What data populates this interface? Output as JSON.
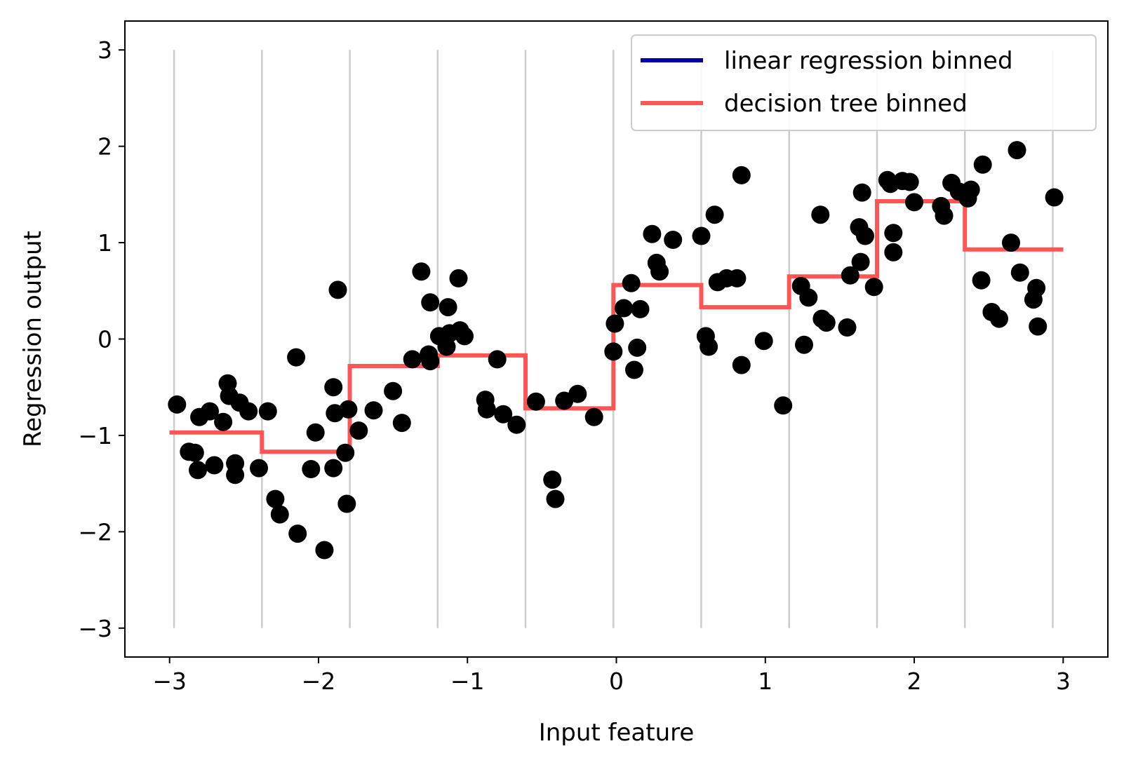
{
  "chart_data": {
    "type": "line",
    "xlabel": "Input feature",
    "ylabel": "Regression output",
    "xlim": [
      -3.3,
      3.3
    ],
    "ylim": [
      -3.3,
      3.3
    ],
    "xticks": [
      -3,
      -2,
      -1,
      0,
      1,
      2,
      3
    ],
    "yticks": [
      -3,
      -2,
      -1,
      0,
      1,
      2,
      3
    ],
    "xtick_labels": [
      "−3",
      "−2",
      "−1",
      "0",
      "1",
      "2",
      "3"
    ],
    "ytick_labels": [
      "−3",
      "−2",
      "−1",
      "0",
      "1",
      "2",
      "3"
    ],
    "bin_edges": [
      -2.97,
      -2.38,
      -1.79,
      -1.2,
      -0.61,
      -0.02,
      0.57,
      1.16,
      1.75,
      2.34,
      2.93
    ],
    "bin_line_color": "#cccccc",
    "legend_position": "upper right",
    "series": [
      {
        "name": "linear regression binned",
        "color": "#0000aa",
        "x": [
          -3,
          -2.38,
          -2.38,
          -1.79,
          -1.79,
          -1.2,
          -1.2,
          -0.61,
          -0.61,
          -0.02,
          -0.02,
          0.57,
          0.57,
          1.16,
          1.16,
          1.75,
          1.75,
          2.34,
          2.34,
          3
        ],
        "y": [
          -0.97,
          -0.97,
          -1.17,
          -1.17,
          -0.28,
          -0.28,
          -0.17,
          -0.17,
          -0.72,
          -0.72,
          0.56,
          0.56,
          0.33,
          0.33,
          0.65,
          0.65,
          1.43,
          1.43,
          0.93,
          0.93
        ]
      },
      {
        "name": "decision tree binned",
        "color": "#ff5555",
        "x": [
          -3,
          -2.38,
          -2.38,
          -1.79,
          -1.79,
          -1.2,
          -1.2,
          -0.61,
          -0.61,
          -0.02,
          -0.02,
          0.57,
          0.57,
          1.16,
          1.16,
          1.75,
          1.75,
          2.34,
          2.34,
          3
        ],
        "y": [
          -0.97,
          -0.97,
          -1.17,
          -1.17,
          -0.28,
          -0.28,
          -0.17,
          -0.17,
          -0.72,
          -0.72,
          0.56,
          0.56,
          0.33,
          0.33,
          0.65,
          0.65,
          1.43,
          1.43,
          0.93,
          0.93
        ]
      }
    ],
    "scatter": {
      "color": "#000000",
      "points": [
        [
          -2.95,
          -0.68
        ],
        [
          -2.87,
          -1.17
        ],
        [
          -2.83,
          -1.18
        ],
        [
          -2.81,
          -1.36
        ],
        [
          -2.8,
          -0.81
        ],
        [
          -2.73,
          -0.75
        ],
        [
          -2.7,
          -1.31
        ],
        [
          -2.64,
          -0.86
        ],
        [
          -2.61,
          -0.46
        ],
        [
          -2.6,
          -0.59
        ],
        [
          -2.56,
          -1.29
        ],
        [
          -2.56,
          -1.41
        ],
        [
          -2.53,
          -0.66
        ],
        [
          -2.47,
          -0.75
        ],
        [
          -2.4,
          -1.34
        ],
        [
          -2.34,
          -0.75
        ],
        [
          -2.29,
          -1.66
        ],
        [
          -2.26,
          -1.82
        ],
        [
          -2.15,
          -0.19
        ],
        [
          -2.14,
          -2.02
        ],
        [
          -2.05,
          -1.35
        ],
        [
          -2.02,
          -0.97
        ],
        [
          -1.96,
          -2.19
        ],
        [
          -1.9,
          -0.5
        ],
        [
          -1.9,
          -1.34
        ],
        [
          -1.89,
          -0.77
        ],
        [
          -1.87,
          0.51
        ],
        [
          -1.82,
          -1.18
        ],
        [
          -1.81,
          -1.71
        ],
        [
          -1.8,
          -0.73
        ],
        [
          -1.73,
          -0.95
        ],
        [
          -1.63,
          -0.74
        ],
        [
          -1.5,
          -0.54
        ],
        [
          -1.44,
          -0.87
        ],
        [
          -1.37,
          -0.21
        ],
        [
          -1.31,
          0.7
        ],
        [
          -1.26,
          -0.16
        ],
        [
          -1.25,
          -0.23
        ],
        [
          -1.25,
          0.38
        ],
        [
          -1.19,
          0.03
        ],
        [
          -1.14,
          -0.08
        ],
        [
          -1.13,
          0.33
        ],
        [
          -1.12,
          0.06
        ],
        [
          -1.06,
          0.63
        ],
        [
          -1.05,
          0.09
        ],
        [
          -1.02,
          0.03
        ],
        [
          -0.88,
          -0.63
        ],
        [
          -0.87,
          -0.73
        ],
        [
          -0.8,
          -0.21
        ],
        [
          -0.76,
          -0.78
        ],
        [
          -0.67,
          -0.89
        ],
        [
          -0.54,
          -0.65
        ],
        [
          -0.43,
          -1.46
        ],
        [
          -0.41,
          -1.66
        ],
        [
          -0.35,
          -0.64
        ],
        [
          -0.26,
          -0.57
        ],
        [
          -0.15,
          -0.81
        ],
        [
          -0.01,
          0.16
        ],
        [
          -0.02,
          -0.13
        ],
        [
          0.05,
          0.32
        ],
        [
          0.1,
          0.58
        ],
        [
          0.12,
          -0.32
        ],
        [
          0.14,
          -0.09
        ],
        [
          0.16,
          0.31
        ],
        [
          0.24,
          1.09
        ],
        [
          0.27,
          0.79
        ],
        [
          0.29,
          0.7
        ],
        [
          0.38,
          1.03
        ],
        [
          0.57,
          1.07
        ],
        [
          0.6,
          0.03
        ],
        [
          0.62,
          -0.08
        ],
        [
          0.66,
          1.29
        ],
        [
          0.68,
          0.59
        ],
        [
          0.74,
          0.63
        ],
        [
          0.81,
          0.63
        ],
        [
          0.84,
          -0.27
        ],
        [
          0.84,
          1.7
        ],
        [
          0.99,
          -0.02
        ],
        [
          1.12,
          -0.69
        ],
        [
          1.24,
          0.55
        ],
        [
          1.26,
          -0.06
        ],
        [
          1.29,
          0.43
        ],
        [
          1.37,
          1.29
        ],
        [
          1.38,
          0.21
        ],
        [
          1.41,
          0.17
        ],
        [
          1.55,
          0.12
        ],
        [
          1.57,
          0.66
        ],
        [
          1.63,
          1.16
        ],
        [
          1.64,
          0.8
        ],
        [
          1.65,
          1.52
        ],
        [
          1.67,
          1.07
        ],
        [
          1.73,
          0.54
        ],
        [
          1.82,
          1.65
        ],
        [
          1.84,
          1.61
        ],
        [
          1.86,
          0.9
        ],
        [
          1.86,
          1.1
        ],
        [
          1.92,
          1.64
        ],
        [
          1.97,
          1.63
        ],
        [
          2.0,
          1.42
        ],
        [
          2.18,
          1.38
        ],
        [
          2.2,
          1.28
        ],
        [
          2.25,
          1.62
        ],
        [
          2.3,
          1.53
        ],
        [
          2.36,
          1.46
        ],
        [
          2.38,
          1.55
        ],
        [
          2.45,
          0.61
        ],
        [
          2.46,
          1.81
        ],
        [
          2.52,
          0.28
        ],
        [
          2.57,
          0.21
        ],
        [
          2.65,
          1.0
        ],
        [
          2.69,
          1.96
        ],
        [
          2.71,
          0.69
        ],
        [
          2.8,
          0.41
        ],
        [
          2.82,
          0.53
        ],
        [
          2.83,
          0.13
        ],
        [
          2.94,
          1.47
        ]
      ]
    }
  }
}
